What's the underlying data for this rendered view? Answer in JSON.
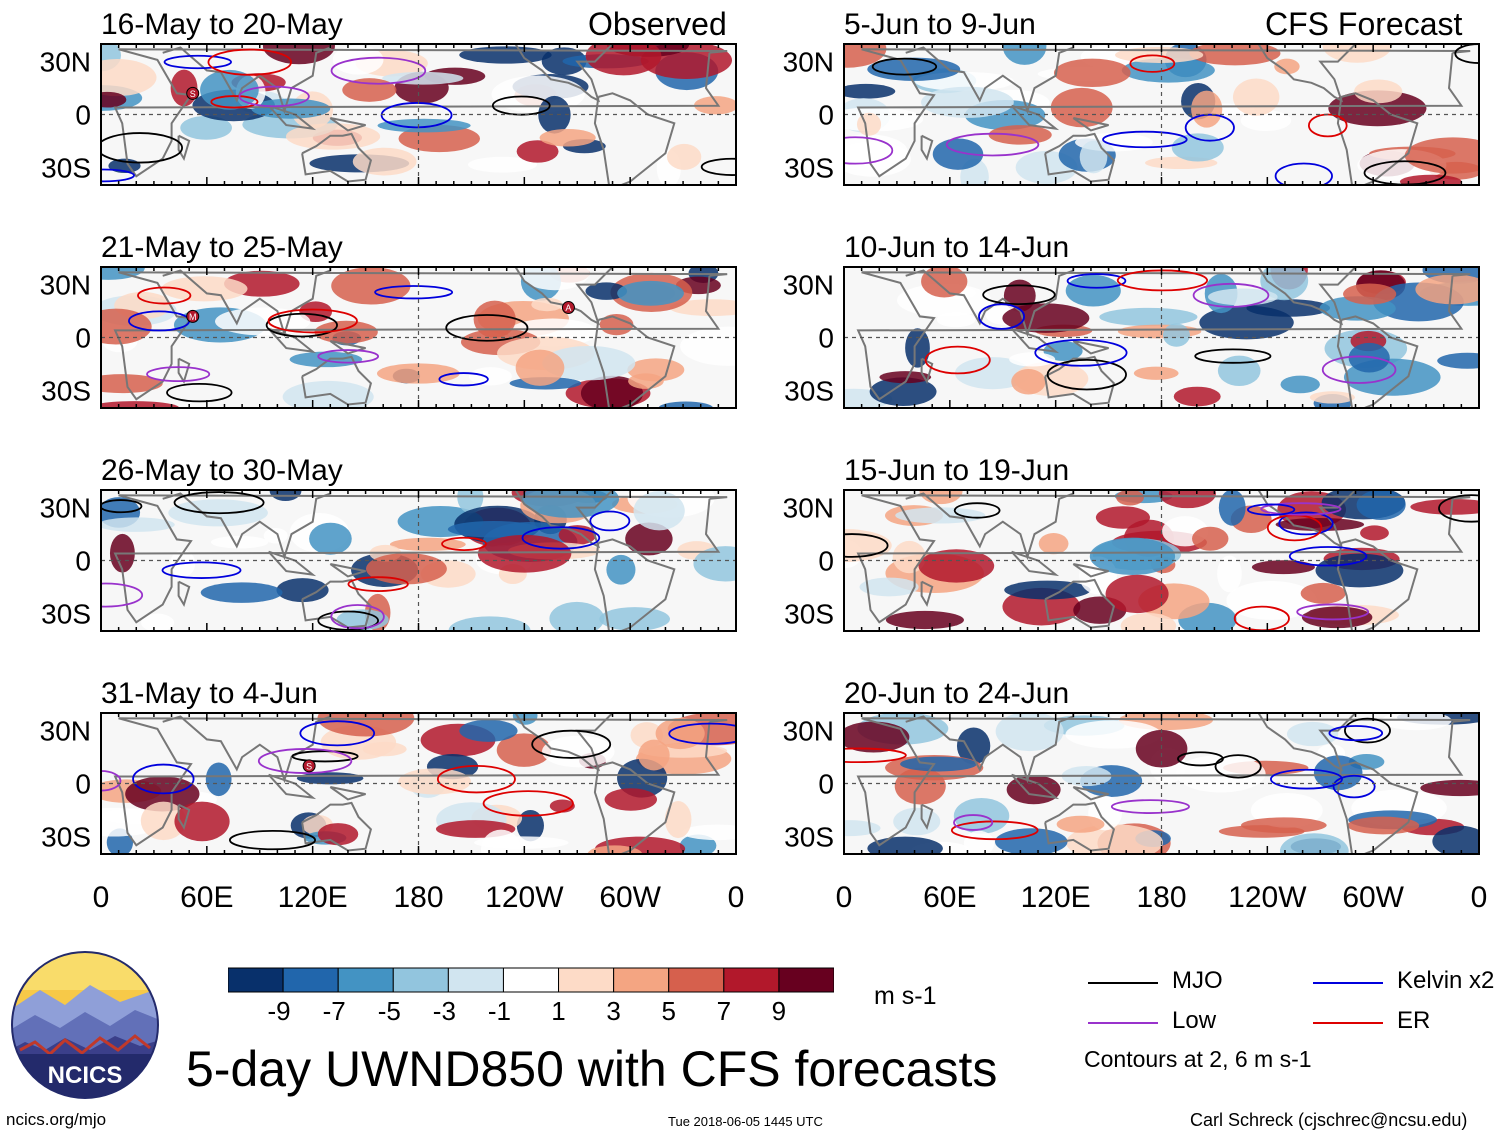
{
  "title": "5-day UWND850 with CFS forecasts",
  "left_column_title": "Observed",
  "right_column_title": "CFS Forecast",
  "site": "ncics.org/mjo",
  "timestamp": "Tue 2018-06-05 1445 UTC",
  "author": "Carl Schreck (cjschrec@ncsu.edu)",
  "logo_text": "NCICS",
  "units": "m s-1",
  "contour_note": "Contours at 2, 6 m s-1",
  "colors": {
    "blues": [
      "#08306b",
      "#2166ac",
      "#4393c3",
      "#92c5de",
      "#d1e5f0"
    ],
    "white": "#ffffff",
    "reds": [
      "#fddbc7",
      "#f4a582",
      "#d6604d",
      "#b2182b",
      "#67001f"
    ],
    "mjo": "#000000",
    "low": "#9932cc",
    "kelvin": "#0000dd",
    "er": "#dd0000",
    "land": "#777777"
  },
  "legend": [
    {
      "name": "MJO",
      "color": "#000000"
    },
    {
      "name": "Kelvin x2",
      "color": "#0000dd"
    },
    {
      "name": "Low",
      "color": "#9932cc"
    },
    {
      "name": "ER",
      "color": "#dd0000"
    }
  ],
  "chart_data": {
    "type": "heatmap",
    "variable": "850-hPa zonal wind anomaly (5-day mean)",
    "colorbar_ticks": [
      "-9",
      "-7",
      "-5",
      "-3",
      "-1",
      "1",
      "3",
      "5",
      "7",
      "9"
    ],
    "x_ticks": [
      "0",
      "60E",
      "120E",
      "180",
      "120W",
      "60W",
      "0"
    ],
    "y_ticks": [
      "30N",
      "0",
      "30S"
    ],
    "xlim_deg_east": [
      0,
      360
    ],
    "ylim_deg": [
      -40,
      40
    ],
    "panels": [
      {
        "period": "16-May to 20-May",
        "source": "Observed",
        "markers": [
          "S"
        ]
      },
      {
        "period": "21-May to 25-May",
        "source": "Observed",
        "markers": [
          "M",
          "A"
        ]
      },
      {
        "period": "26-May to 30-May",
        "source": "Observed",
        "markers": []
      },
      {
        "period": "31-May to 4-Jun",
        "source": "Observed",
        "markers": [
          "S"
        ]
      },
      {
        "period": "5-Jun to 9-Jun",
        "source": "CFS Forecast",
        "markers": []
      },
      {
        "period": "10-Jun to 14-Jun",
        "source": "CFS Forecast",
        "markers": []
      },
      {
        "period": "15-Jun to 19-Jun",
        "source": "CFS Forecast",
        "markers": []
      },
      {
        "period": "20-Jun to 24-Jun",
        "source": "CFS Forecast",
        "markers": []
      }
    ]
  }
}
